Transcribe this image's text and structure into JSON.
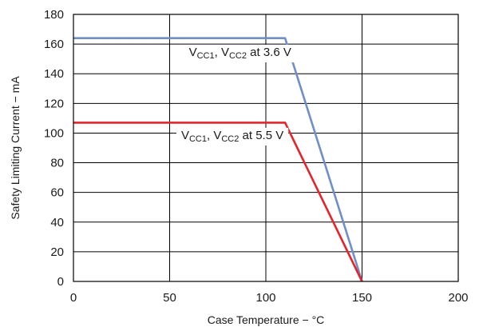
{
  "chart_data": {
    "type": "line",
    "xlabel": "Case Temperature − °C",
    "ylabel": "Safety Limiting Current − mA",
    "xlim": [
      0,
      200
    ],
    "ylim": [
      0,
      180
    ],
    "xticks": [
      0,
      50,
      100,
      150,
      200
    ],
    "yticks": [
      0,
      20,
      40,
      60,
      80,
      100,
      120,
      140,
      160,
      180
    ],
    "grid": true,
    "legend": "none",
    "series": [
      {
        "color": "#6f8fc9",
        "x": [
          0,
          110,
          150
        ],
        "y": [
          164,
          164,
          0
        ]
      },
      {
        "color": "#e3242b",
        "x": [
          0,
          110,
          150
        ],
        "y": [
          107,
          107,
          0
        ]
      }
    ],
    "annotations": [
      {
        "series_index": 0,
        "parts": [
          {
            "text": "V",
            "sub": false
          },
          {
            "text": "CC1",
            "sub": true
          },
          {
            "text": ", V",
            "sub": false
          },
          {
            "text": "CC2",
            "sub": true
          },
          {
            "text": " at 3.6 V",
            "sub": false
          }
        ],
        "x": 60,
        "y": 152
      },
      {
        "series_index": 1,
        "parts": [
          {
            "text": "V",
            "sub": false
          },
          {
            "text": "CC1",
            "sub": true
          },
          {
            "text": ", V",
            "sub": false
          },
          {
            "text": "CC2",
            "sub": true
          },
          {
            "text": " at 5.5 V",
            "sub": false
          }
        ],
        "x": 56,
        "y": 96
      }
    ]
  }
}
